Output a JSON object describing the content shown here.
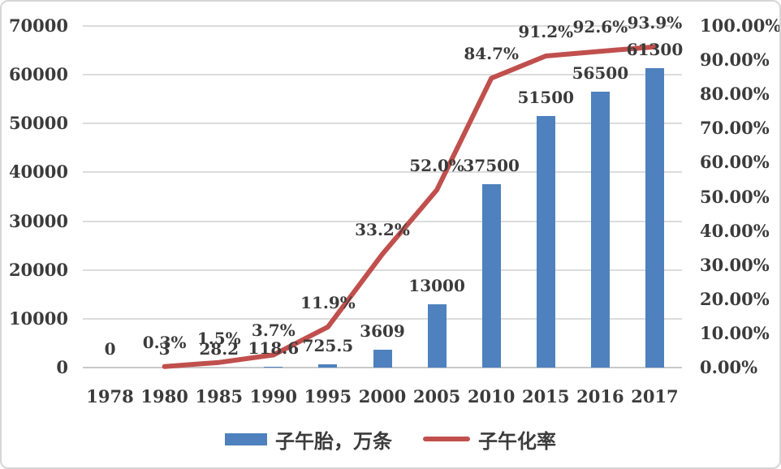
{
  "chart_data": {
    "type": "combo-bar-line",
    "title": "",
    "categories": [
      "1978",
      "1980",
      "1985",
      "1990",
      "1995",
      "2000",
      "2005",
      "2010",
      "2015",
      "2016",
      "2017"
    ],
    "series": [
      {
        "name": "子午胎，万条",
        "type": "bar",
        "axis": "left",
        "color": "#4E81BD",
        "values": [
          0,
          3,
          28.2,
          118.6,
          725.5,
          3609,
          13000,
          37500,
          51500,
          56500,
          61300
        ],
        "labels": [
          "0",
          "3",
          "28.2",
          "118.6",
          "725.5",
          "3609",
          "13000",
          "37500",
          "51500",
          "56500",
          "61300"
        ]
      },
      {
        "name": "子午化率",
        "type": "line",
        "axis": "right",
        "color": "#C0504D",
        "values": [
          null,
          0.3,
          1.5,
          3.7,
          11.9,
          33.2,
          52.0,
          84.7,
          91.2,
          92.6,
          93.9
        ],
        "labels": [
          "",
          "0.3%",
          "1.5%",
          "3.7%",
          "11.9%",
          "33.2%",
          "52.0%",
          "84.7%",
          "91.2%",
          "92.6%",
          "93.9%"
        ]
      }
    ],
    "left_axis": {
      "min": 0,
      "max": 70000,
      "ticks": [
        "70000",
        "60000",
        "50000",
        "40000",
        "30000",
        "20000",
        "10000",
        "0"
      ]
    },
    "right_axis": {
      "min": 0,
      "max": 100,
      "ticks": [
        "100.00%",
        "90.00%",
        "80.00%",
        "70.00%",
        "60.00%",
        "50.00%",
        "40.00%",
        "30.00%",
        "20.00%",
        "10.00%",
        "0.00%"
      ]
    },
    "grid": true,
    "legend_position": "bottom",
    "legend": [
      {
        "label": "子午胎，万条",
        "marker": "rect",
        "color": "#4E81BD"
      },
      {
        "label": "子午化率",
        "marker": "line",
        "color": "#C0504D"
      }
    ]
  },
  "colors": {
    "bar": "#4E81BD",
    "line": "#C0504D",
    "text": "#3b3b3b",
    "gridline": "#dcdcdc",
    "background": "#ffffff"
  }
}
